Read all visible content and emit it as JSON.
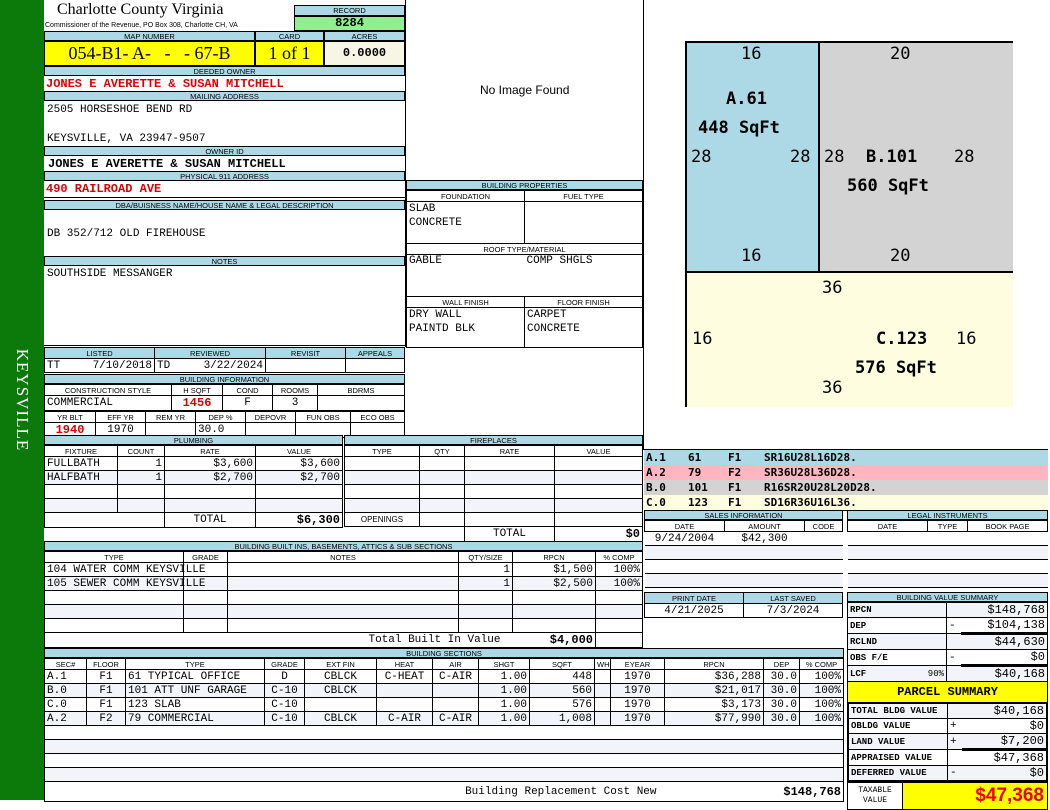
{
  "sidebar": {
    "label": "KEYSVILLE"
  },
  "header": {
    "county": "Charlotte County Virginia",
    "office": "Commissioner of the Revenue, PO Box 308, Charlotte CH, VA",
    "record_label": "RECORD",
    "record": "8284"
  },
  "parcel": {
    "map_label": "MAP NUMBER",
    "map": "054-B1- A-   -   - 67-B",
    "card_label": "CARD",
    "card": "1 of 1",
    "acres_label": "ACRES",
    "acres": "0.0000"
  },
  "owner": {
    "deeded_label": "DEEDED OWNER",
    "deeded": "JONES E AVERETTE & SUSAN MITCHELL",
    "mailing_label": "MAILING ADDRESS",
    "mail1": "2505 HORSESHOE BEND RD",
    "mail2": "KEYSVILLE, VA 23947-9507",
    "id_label": "OWNER ID",
    "id": "JONES E AVERETTE & SUSAN MITCHELL",
    "physical_label": "PHYSICAL 911 ADDRESS",
    "physical": "490 RAILROAD AVE",
    "dba_label": "DBA/BUISNESS NAME/HOUSE NAME & LEGAL DESCRIPTION",
    "dba": "DB 352/712 OLD FIREHOUSE",
    "notes_label": "NOTES",
    "notes": "SOUTHSIDE MESSANGER"
  },
  "photo": {
    "text": "No Image Found"
  },
  "props": {
    "title": "BUILDING PROPERTIES",
    "foundation_label": "FOUNDATION",
    "foundation": [
      "SLAB",
      "CONCRETE"
    ],
    "fuel_label": "FUEL TYPE",
    "roof_label": "ROOF TYPE/MATERIAL",
    "roof": "GABLE",
    "roof2": "COMP SHGLS",
    "wall_label": "WALL FINISH",
    "wall": [
      "DRY WALL",
      "PAINTD BLK"
    ],
    "floor_label": "FLOOR FINISH",
    "floor": [
      "CARPET",
      "CONCRETE"
    ]
  },
  "listing": {
    "headers": [
      "LISTED",
      "REVIEWED",
      "REVISIT",
      "APPEALS"
    ],
    "listed_by": "TT",
    "listed": "7/10/2018",
    "reviewed_by": "TD",
    "reviewed": "3/22/2024"
  },
  "building_info": {
    "title": "BUILDING INFORMATION",
    "h1": [
      "CONSTRUCTION STYLE",
      "H SQFT",
      "COND",
      "ROOMS",
      "BDRMS"
    ],
    "v1": [
      "COMMERCIAL",
      "1456",
      "F",
      "3",
      ""
    ],
    "h2": [
      "YR BLT",
      "EFF YR",
      "REM YR",
      "DEP %",
      "DEPOVR",
      "FUN OBS",
      "ECO OBS"
    ],
    "v2": [
      "1940",
      "1970",
      "",
      "30.0",
      "",
      "",
      ""
    ]
  },
  "plumbing": {
    "title": "PLUMBING",
    "headers": [
      "FIXTURE",
      "COUNT",
      "RATE",
      "VALUE"
    ],
    "rows": [
      [
        "FULLBATH",
        "1",
        "$3,600",
        "$3,600"
      ],
      [
        "HALFBATH",
        "1",
        "$2,700",
        "$2,700"
      ],
      [
        "",
        "",
        "",
        ""
      ],
      [
        "",
        "",
        "",
        ""
      ]
    ],
    "total_label": "TOTAL",
    "total": "$6,300"
  },
  "fireplaces": {
    "title": "FIREPLACES",
    "headers": [
      "TYPE",
      "QTY",
      "RATE",
      "VALUE"
    ],
    "openings_label": "OPENINGS",
    "total_label": "TOTAL",
    "total": "$0"
  },
  "builtins": {
    "title": "BUILDING BUILT INS, BASEMENTS, ATTICS & SUB SECTIONS",
    "headers": [
      "TYPE",
      "GRADE",
      "NOTES",
      "QTY/SIZE",
      "RPCN",
      "% COMP"
    ],
    "rows": [
      [
        "104 WATER COMM KEYSVILLE",
        "",
        "",
        "1",
        "$1,500",
        "100%"
      ],
      [
        "105 SEWER COMM KEYSVILLE",
        "",
        "",
        "1",
        "$2,500",
        "100%"
      ],
      [
        "",
        "",
        "",
        "",
        "",
        ""
      ],
      [
        "",
        "",
        "",
        "",
        "",
        ""
      ],
      [
        "",
        "",
        "",
        "",
        "",
        ""
      ]
    ],
    "total_label": "Total Built In Value",
    "total": "$4,000"
  },
  "sections": {
    "title": "BUILDING SECTIONS",
    "headers": [
      "SEC#",
      "FLOOR",
      "TYPE",
      "GRADE",
      "EXT FIN",
      "HEAT",
      "AIR",
      "SHGT",
      "SQFT",
      "WHGT",
      "EYEAR",
      "RPCN",
      "DEP",
      "% COMP"
    ],
    "rows": [
      [
        "A.1",
        "F1",
        "61 TYPICAL OFFICE",
        "D",
        "CBLCK",
        "C-HEAT",
        "C-AIR",
        "1.00",
        "448",
        "",
        "1970",
        "$36,288",
        "30.0",
        "100%"
      ],
      [
        "B.0",
        "F1",
        "101 ATT UNF GARAGE",
        "C-10",
        "CBLCK",
        "",
        "",
        "1.00",
        "560",
        "",
        "1970",
        "$21,017",
        "30.0",
        "100%"
      ],
      [
        "C.0",
        "F1",
        "123 SLAB",
        "C-10",
        "",
        "",
        "",
        "1.00",
        "576",
        "",
        "1970",
        "$3,173",
        "30.0",
        "100%"
      ],
      [
        "A.2",
        "F2",
        "79 COMMERCIAL",
        "C-10",
        "CBLCK",
        "C-AIR",
        "C-AIR",
        "1.00",
        "1,008",
        "",
        "1970",
        "$77,990",
        "30.0",
        "100%"
      ]
    ],
    "total_label": "Building Replacement Cost New",
    "total": "$148,768"
  },
  "sketch": {
    "areas": [
      {
        "id": "A.61",
        "sqft": "448 SqFt",
        "top": "16",
        "bottom": "16",
        "left": "28",
        "right": "28",
        "color": "#add8e6"
      },
      {
        "id": "B.101",
        "sqft": "560 SqFt",
        "top": "20",
        "bottom": "20",
        "left": "28",
        "right": "28",
        "color": "#d3d3d3"
      },
      {
        "id": "C.123",
        "sqft": "576 SqFt",
        "top": "36",
        "bottom": "36",
        "left": "16",
        "right": "16",
        "color": "#fffde0"
      }
    ],
    "legend": [
      {
        "sec": "A.1",
        "code": "61",
        "floor": "F1",
        "path": "SR16U28L16D28.",
        "color": "#add8e6"
      },
      {
        "sec": "A.2",
        "code": "79",
        "floor": "F2",
        "path": "SR36U28L36D28.",
        "color": "#ffb6c1"
      },
      {
        "sec": "B.0",
        "code": "101",
        "floor": "F1",
        "path": "R16SR20U28L20D28.",
        "color": "#d3d3d3"
      },
      {
        "sec": "C.0",
        "code": "123",
        "floor": "F1",
        "path": "SD16R36U16L36.",
        "color": "#fffde0"
      }
    ]
  },
  "sales": {
    "title": "SALES INFORMATION",
    "headers": [
      "DATE",
      "AMOUNT",
      "CODE"
    ],
    "rows": [
      [
        "9/24/2004",
        "$42,300",
        ""
      ],
      [
        "",
        "",
        ""
      ],
      [
        "",
        "",
        ""
      ],
      [
        "",
        "",
        ""
      ]
    ]
  },
  "legal": {
    "title": "LEGAL INSTRUMENTS",
    "headers": [
      "DATE",
      "TYPE",
      "BOOK PAGE"
    ],
    "rows": [
      [
        "",
        "",
        ""
      ],
      [
        "",
        "",
        ""
      ],
      [
        "",
        "",
        ""
      ],
      [
        "",
        "",
        ""
      ]
    ]
  },
  "dates": {
    "print_label": "PRINT DATE",
    "print": "4/21/2025",
    "saved_label": "LAST SAVED",
    "saved": "7/3/2024"
  },
  "value_summary": {
    "title": "BUILDING VALUE SUMMARY",
    "rows": [
      [
        "RPCN",
        "",
        "",
        "$148,768"
      ],
      [
        "DEP",
        "",
        "-",
        "$104,138"
      ],
      [
        "RCLND",
        "",
        "",
        "$44,630"
      ],
      [
        "OBS F/E",
        "",
        "-",
        "$0"
      ],
      [
        "LCF",
        "90%",
        "",
        "$40,168"
      ]
    ]
  },
  "parcel_summary": {
    "title": "PARCEL SUMMARY",
    "rows": [
      [
        "TOTAL BLDG VALUE",
        "",
        "$40,168"
      ],
      [
        "OBLDG VALUE",
        "+",
        "$0"
      ],
      [
        "LAND VALUE",
        "+",
        "$7,200"
      ],
      [
        "APPRAISED VALUE",
        "",
        "$47,368"
      ],
      [
        "DEFERRED VALUE",
        "-",
        "$0"
      ]
    ],
    "taxable_label": "TAXABLE VALUE",
    "taxable": "$47,368"
  },
  "colors": {
    "sidebar": "#0b7a0b",
    "header": "#add8e6",
    "highlight": "#ffff00",
    "record": "#90ee90",
    "emphasis": "#dd0000"
  }
}
